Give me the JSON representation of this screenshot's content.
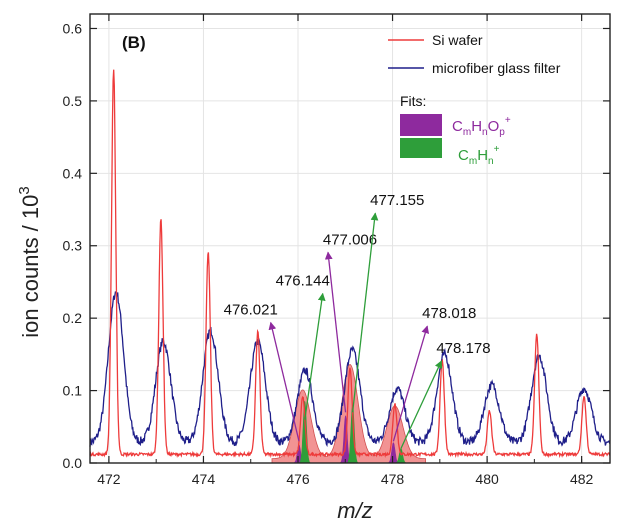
{
  "chart_data": {
    "type": "line",
    "panel_label": "(B)",
    "xlabel": "m/z",
    "ylabel": "ion counts / 10",
    "ylabel_exponent": "3",
    "xlim": [
      471.6,
      482.6
    ],
    "ylim": [
      0,
      0.62
    ],
    "x_ticks": [
      "472",
      "474",
      "476",
      "478",
      "480",
      "482"
    ],
    "y_ticks": [
      "0.0",
      "0.1",
      "0.2",
      "0.3",
      "0.4",
      "0.5",
      "0.6"
    ],
    "grid": true,
    "legend_position": "top-right",
    "series": [
      {
        "name": "Si wafer",
        "color": "#ee3b3b",
        "peaks": [
          {
            "x": 472.1,
            "y": 0.53
          },
          {
            "x": 473.1,
            "y": 0.325
          },
          {
            "x": 474.1,
            "y": 0.28
          },
          {
            "x": 475.15,
            "y": 0.17
          },
          {
            "x": 476.1,
            "y": 0.08
          },
          {
            "x": 477.1,
            "y": 0.12
          },
          {
            "x": 478.05,
            "y": 0.07
          },
          {
            "x": 479.05,
            "y": 0.13
          },
          {
            "x": 480.05,
            "y": 0.06
          },
          {
            "x": 481.05,
            "y": 0.165
          },
          {
            "x": 482.05,
            "y": 0.08
          }
        ]
      },
      {
        "name": "microfiber glass filter",
        "color": "#1f1f8a",
        "peaks": [
          {
            "x": 472.15,
            "y": 0.208
          },
          {
            "x": 473.15,
            "y": 0.14
          },
          {
            "x": 474.15,
            "y": 0.155
          },
          {
            "x": 475.15,
            "y": 0.14
          },
          {
            "x": 476.15,
            "y": 0.1
          },
          {
            "x": 477.15,
            "y": 0.128
          },
          {
            "x": 478.1,
            "y": 0.075
          },
          {
            "x": 479.1,
            "y": 0.122
          },
          {
            "x": 480.1,
            "y": 0.08
          },
          {
            "x": 481.1,
            "y": 0.12
          },
          {
            "x": 482.05,
            "y": 0.075
          }
        ]
      }
    ],
    "fits": {
      "title": "Fits:",
      "envelope_color": "#f08080",
      "items": [
        {
          "label_base": "C",
          "sub1": "m",
          "mid1": "H",
          "sub2": "n",
          "mid2": "O",
          "sub3": "p",
          "sup": "+",
          "color": "#8e2a9e"
        },
        {
          "label_base": "C",
          "sub1": "m",
          "mid1": "H",
          "sub2": "n",
          "sup": "+",
          "color": "#2e9e3a"
        }
      ],
      "envelope_peaks": [
        {
          "x": 476.1,
          "y": 0.095
        },
        {
          "x": 477.1,
          "y": 0.13
        },
        {
          "x": 478.05,
          "y": 0.073
        }
      ],
      "component_peaks": [
        {
          "x": 476.021,
          "y": 0.025,
          "color": "#8e2a9e"
        },
        {
          "x": 476.144,
          "y": 0.085,
          "color": "#2e9e3a"
        },
        {
          "x": 477.006,
          "y": 0.065,
          "color": "#8e2a9e"
        },
        {
          "x": 477.155,
          "y": 0.08,
          "color": "#2e9e3a"
        },
        {
          "x": 478.018,
          "y": 0.028,
          "color": "#8e2a9e"
        },
        {
          "x": 478.178,
          "y": 0.02,
          "color": "#2e9e3a"
        }
      ]
    },
    "annotations": [
      {
        "text": "476.021",
        "color": "#8e2a9e",
        "peak_x": 476.021,
        "peak_y": 0.03,
        "label_x": 475.0,
        "label_y": 0.205
      },
      {
        "text": "476.144",
        "color": "#2e9e3a",
        "peak_x": 476.144,
        "peak_y": 0.06,
        "label_x": 476.1,
        "label_y": 0.245
      },
      {
        "text": "477.006",
        "color": "#8e2a9e",
        "peak_x": 477.006,
        "peak_y": 0.07,
        "label_x": 477.1,
        "label_y": 0.302
      },
      {
        "text": "477.155",
        "color": "#2e9e3a",
        "peak_x": 477.155,
        "peak_y": 0.07,
        "label_x": 478.1,
        "label_y": 0.356
      },
      {
        "text": "478.018",
        "color": "#8e2a9e",
        "peak_x": 478.018,
        "peak_y": 0.03,
        "label_x": 479.2,
        "label_y": 0.2
      },
      {
        "text": "478.178",
        "color": "#2e9e3a",
        "peak_x": 478.178,
        "peak_y": 0.02,
        "label_x": 479.5,
        "label_y": 0.152
      }
    ]
  }
}
